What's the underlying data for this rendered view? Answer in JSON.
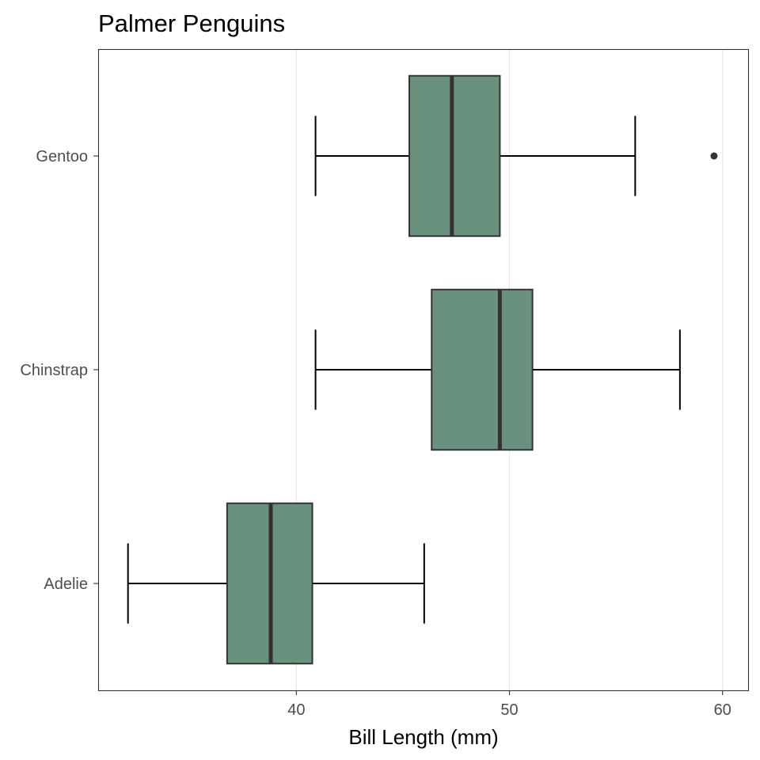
{
  "chart_data": {
    "type": "boxplot",
    "orientation": "horizontal",
    "title": "Palmer Penguins",
    "xlabel": "Bill Length (mm)",
    "ylabel": "",
    "xlim": [
      30.7,
      61.2
    ],
    "x_ticks": [
      40,
      50,
      60
    ],
    "grid": "vertical major gridlines",
    "colors": {
      "box_fill": "#6a917e",
      "box_stroke": "#333333",
      "grid": "#e6e6e6",
      "panel_border": "#333333",
      "outlier": "#333333"
    },
    "categories": [
      "Adelie",
      "Chinstrap",
      "Gentoo"
    ],
    "series": [
      {
        "category": "Adelie",
        "whisker_low": 32.1,
        "q1": 36.75,
        "median": 38.8,
        "q3": 40.75,
        "whisker_high": 46.0,
        "outliers": []
      },
      {
        "category": "Chinstrap",
        "whisker_low": 40.9,
        "q1": 46.35,
        "median": 49.55,
        "q3": 51.08,
        "whisker_high": 58.0,
        "outliers": []
      },
      {
        "category": "Gentoo",
        "whisker_low": 40.9,
        "q1": 45.3,
        "median": 47.3,
        "q3": 49.55,
        "whisker_high": 55.9,
        "outliers": [
          59.6
        ]
      }
    ]
  }
}
